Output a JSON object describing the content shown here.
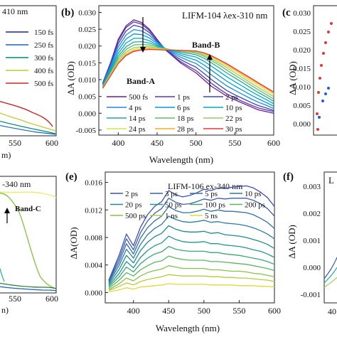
{
  "figure": {
    "panel_a_title_fragment": "410 nm",
    "panel_a_legend": [
      "150 fs",
      "250 fs",
      "300 fs",
      "400 fs",
      "500 fs"
    ],
    "panel_a_xticks": [
      "550",
      "600"
    ],
    "panel_a_xlabel_fragment": "m)",
    "panel_c_label": "(c",
    "panel_c_yticks": [
      "0.030",
      "0.025",
      "0.020",
      "0.015",
      "0.010",
      "0.005",
      "0.000"
    ],
    "panel_c_ylabel": "ΔA (OD)",
    "panel_d_title_fragment": "-340 nm",
    "panel_d_band": "Band-C",
    "panel_d_xticks": [
      "550",
      "600"
    ],
    "panel_d_xlabel_fragment": "n)",
    "panel_f_label": "(f)",
    "panel_f_title_fragment": "L",
    "panel_f_yticks": [
      "0.003",
      "0.002",
      "0.001",
      "0.000",
      "-0.001"
    ],
    "panel_f_ylabel": "ΔA (OD)",
    "panel_f_xtick": "40"
  },
  "chart_data": [
    {
      "panel": "(b)",
      "type": "line",
      "title": "LIFM-104 λex-310 nm",
      "xlabel": "Wavelength (nm)",
      "ylabel": "ΔA (OD)",
      "xlim": [
        375,
        600
      ],
      "ylim": [
        -0.0065,
        0.032
      ],
      "xticks": [
        400,
        450,
        500,
        550,
        600
      ],
      "yticks": [
        -0.005,
        0.0,
        0.005,
        0.01,
        0.015,
        0.02,
        0.025,
        0.03
      ],
      "ytick_labels": [
        "-0.005",
        "0.000",
        "0.005",
        "0.010",
        "0.015",
        "0.020",
        "0.025",
        "0.030"
      ],
      "annotations": [
        "Band-A",
        "Band-B"
      ],
      "legend_placement": "bottom-left",
      "x": [
        380,
        390,
        400,
        410,
        420,
        430,
        440,
        450,
        460,
        470,
        480,
        490,
        500,
        510,
        520,
        530,
        540,
        550,
        560,
        570,
        580,
        590,
        600
      ],
      "series": [
        {
          "name": "500 fs",
          "color": "#6a1b9a",
          "values": [
            0.009,
            0.015,
            0.022,
            0.026,
            0.0278,
            0.027,
            0.025,
            0.022,
            0.019,
            0.017,
            0.015,
            0.0135,
            0.012,
            0.01,
            0.008,
            0.0065,
            0.005,
            0.004,
            0.003,
            0.002,
            0.001,
            0.0005,
            0.0
          ]
        },
        {
          "name": "1 ps",
          "color": "#5e35b1",
          "values": [
            0.009,
            0.0148,
            0.0215,
            0.0255,
            0.0272,
            0.0265,
            0.0246,
            0.0218,
            0.0192,
            0.0172,
            0.0154,
            0.014,
            0.0127,
            0.0108,
            0.0089,
            0.0072,
            0.0057,
            0.0046,
            0.0035,
            0.0025,
            0.0016,
            0.001,
            0.0005
          ]
        },
        {
          "name": "2 ps",
          "color": "#3949ab",
          "values": [
            0.0088,
            0.0145,
            0.0207,
            0.0245,
            0.0262,
            0.0256,
            0.024,
            0.0214,
            0.0192,
            0.0175,
            0.016,
            0.0148,
            0.0137,
            0.0119,
            0.01,
            0.0083,
            0.0067,
            0.0055,
            0.0044,
            0.0033,
            0.0023,
            0.0016,
            0.0008
          ]
        },
        {
          "name": "4 ps",
          "color": "#1e88e5",
          "values": [
            0.0086,
            0.014,
            0.0197,
            0.0233,
            0.0249,
            0.0245,
            0.0232,
            0.0211,
            0.0193,
            0.0179,
            0.0167,
            0.0157,
            0.0148,
            0.0132,
            0.0114,
            0.0097,
            0.0081,
            0.0068,
            0.0056,
            0.0044,
            0.0033,
            0.0024,
            0.0014
          ]
        },
        {
          "name": "6 ps",
          "color": "#039be5",
          "values": [
            0.0084,
            0.0135,
            0.0187,
            0.0221,
            0.0236,
            0.0234,
            0.0224,
            0.0207,
            0.0193,
            0.0182,
            0.0173,
            0.0165,
            0.0158,
            0.0144,
            0.0128,
            0.0111,
            0.0095,
            0.0081,
            0.0068,
            0.0055,
            0.0043,
            0.0032,
            0.0021
          ]
        },
        {
          "name": "10 ps",
          "color": "#00acc1",
          "values": [
            0.0082,
            0.013,
            0.0178,
            0.0209,
            0.0223,
            0.0223,
            0.0216,
            0.0203,
            0.0193,
            0.0185,
            0.0178,
            0.0172,
            0.0167,
            0.0155,
            0.014,
            0.0124,
            0.0108,
            0.0094,
            0.008,
            0.0066,
            0.0053,
            0.0041,
            0.0028
          ]
        },
        {
          "name": "14 ps",
          "color": "#26a69a",
          "values": [
            0.008,
            0.0125,
            0.017,
            0.0198,
            0.0212,
            0.0213,
            0.0209,
            0.02,
            0.0193,
            0.0187,
            0.0182,
            0.0178,
            0.0174,
            0.0164,
            0.015,
            0.0135,
            0.0119,
            0.0105,
            0.0091,
            0.0076,
            0.0062,
            0.0049,
            0.0035
          ]
        },
        {
          "name": "18 ps",
          "color": "#66bb6a",
          "values": [
            0.0078,
            0.012,
            0.0163,
            0.019,
            0.0203,
            0.0205,
            0.0203,
            0.0197,
            0.0192,
            0.0188,
            0.0185,
            0.0182,
            0.0179,
            0.017,
            0.0157,
            0.0143,
            0.0128,
            0.0113,
            0.0099,
            0.0084,
            0.007,
            0.0056,
            0.0042
          ]
        },
        {
          "name": "22 ps",
          "color": "#9ccc65",
          "values": [
            0.0077,
            0.0117,
            0.0157,
            0.0183,
            0.0195,
            0.0198,
            0.0198,
            0.0194,
            0.0191,
            0.0188,
            0.0186,
            0.0184,
            0.0182,
            0.0174,
            0.0162,
            0.0149,
            0.0135,
            0.012,
            0.0106,
            0.0091,
            0.0077,
            0.0063,
            0.0049
          ]
        },
        {
          "name": "24 ps",
          "color": "#d4e157",
          "values": [
            0.0076,
            0.0115,
            0.0153,
            0.0178,
            0.019,
            0.0194,
            0.0195,
            0.0192,
            0.019,
            0.0188,
            0.0187,
            0.0185,
            0.0184,
            0.0177,
            0.0166,
            0.0153,
            0.014,
            0.0126,
            0.0112,
            0.0097,
            0.0083,
            0.0069,
            0.0055
          ]
        },
        {
          "name": "28 ps",
          "color": "#ffa726",
          "values": [
            0.0075,
            0.0113,
            0.015,
            0.0174,
            0.0186,
            0.019,
            0.0192,
            0.019,
            0.0189,
            0.0188,
            0.0187,
            0.0186,
            0.0185,
            0.0179,
            0.0169,
            0.0157,
            0.0144,
            0.013,
            0.0116,
            0.0102,
            0.0088,
            0.0074,
            0.006
          ]
        },
        {
          "name": "30 ps",
          "color": "#e53935",
          "values": [
            0.0074,
            0.0111,
            0.0148,
            0.0172,
            0.0184,
            0.0188,
            0.019,
            0.0189,
            0.0188,
            0.0188,
            0.0187,
            0.0186,
            0.0185,
            0.018,
            0.0171,
            0.0159,
            0.0147,
            0.0133,
            0.0119,
            0.0105,
            0.0091,
            0.0077,
            0.0063
          ]
        }
      ]
    },
    {
      "panel": "(e)",
      "type": "line",
      "title": "LIFM-106 ex-340 nm",
      "xlabel": "Wavelength (nm)",
      "ylabel": "ΔA(OD)",
      "xlim": [
        360,
        600
      ],
      "ylim": [
        -0.0015,
        0.0175
      ],
      "xticks": [
        400,
        450,
        500,
        550,
        600
      ],
      "yticks": [
        0.0,
        0.004,
        0.008,
        0.012,
        0.016
      ],
      "ytick_labels": [
        "0.000",
        "0.004",
        "0.008",
        "0.012",
        "0.016"
      ],
      "legend_placement": "top-left",
      "x": [
        365,
        380,
        390,
        400,
        410,
        420,
        430,
        440,
        450,
        460,
        470,
        480,
        490,
        500,
        510,
        520,
        530,
        540,
        550,
        560,
        570,
        580,
        590,
        600
      ],
      "series": [
        {
          "name": "2 ps",
          "color": "#3f51b5",
          "values": [
            0.0018,
            0.0055,
            0.0085,
            0.0068,
            0.0095,
            0.0113,
            0.0125,
            0.0132,
            0.0148,
            0.0142,
            0.0139,
            0.0141,
            0.0145,
            0.015,
            0.0148,
            0.0152,
            0.0151,
            0.0153,
            0.0154,
            0.0155,
            0.0152,
            0.0146,
            0.0138,
            0.0125
          ]
        },
        {
          "name": "3 ps",
          "color": "#3c5fb3",
          "values": [
            0.0017,
            0.005,
            0.0078,
            0.0062,
            0.0087,
            0.0104,
            0.0115,
            0.0122,
            0.0137,
            0.0131,
            0.0128,
            0.0129,
            0.0132,
            0.0136,
            0.0134,
            0.0137,
            0.0136,
            0.0137,
            0.0137,
            0.0137,
            0.0134,
            0.0129,
            0.0122,
            0.0111
          ]
        },
        {
          "name": "5 ps",
          "color": "#356fa8",
          "values": [
            0.0016,
            0.0045,
            0.0071,
            0.0056,
            0.0079,
            0.0094,
            0.0104,
            0.0111,
            0.0125,
            0.0119,
            0.0116,
            0.0116,
            0.0118,
            0.0121,
            0.0118,
            0.012,
            0.0118,
            0.0118,
            0.0117,
            0.0116,
            0.0113,
            0.0108,
            0.0102,
            0.0093
          ]
        },
        {
          "name": "10 ps",
          "color": "#2e7d9d",
          "values": [
            0.0014,
            0.004,
            0.0063,
            0.005,
            0.007,
            0.0084,
            0.0093,
            0.0099,
            0.0111,
            0.0106,
            0.0103,
            0.0102,
            0.0103,
            0.0105,
            0.0102,
            0.0103,
            0.0101,
            0.01,
            0.0099,
            0.0097,
            0.0094,
            0.009,
            0.0085,
            0.0078
          ]
        },
        {
          "name": "20 ps",
          "color": "#218b90",
          "values": [
            0.0012,
            0.0034,
            0.0054,
            0.0043,
            0.0061,
            0.0073,
            0.0081,
            0.0086,
            0.0097,
            0.0092,
            0.0089,
            0.0088,
            0.0088,
            0.0089,
            0.0086,
            0.0087,
            0.0084,
            0.0083,
            0.0082,
            0.008,
            0.0077,
            0.0074,
            0.007,
            0.0064
          ]
        },
        {
          "name": "50 ps",
          "color": "#21998a",
          "values": [
            0.001,
            0.0028,
            0.0045,
            0.0036,
            0.0051,
            0.0061,
            0.0068,
            0.0072,
            0.0082,
            0.0077,
            0.0074,
            0.0073,
            0.0073,
            0.0074,
            0.0071,
            0.0071,
            0.0069,
            0.0068,
            0.0067,
            0.0065,
            0.0062,
            0.006,
            0.0056,
            0.0051
          ]
        },
        {
          "name": "100 ps",
          "color": "#3aa877",
          "values": [
            0.0008,
            0.0023,
            0.0037,
            0.003,
            0.0042,
            0.005,
            0.0056,
            0.0059,
            0.0067,
            0.0063,
            0.0061,
            0.006,
            0.006,
            0.006,
            0.0058,
            0.0058,
            0.0056,
            0.0055,
            0.0054,
            0.0052,
            0.005,
            0.0048,
            0.0045,
            0.0041
          ]
        },
        {
          "name": "200 ps",
          "color": "#5cb65f",
          "values": [
            0.0006,
            0.0018,
            0.0029,
            0.0024,
            0.0033,
            0.0039,
            0.0044,
            0.0046,
            0.0053,
            0.005,
            0.0048,
            0.0047,
            0.0047,
            0.0047,
            0.0045,
            0.0045,
            0.0044,
            0.0043,
            0.0042,
            0.0041,
            0.0039,
            0.0037,
            0.0035,
            0.0032
          ]
        },
        {
          "name": "500 ps",
          "color": "#86c24c",
          "values": [
            0.0004,
            0.0013,
            0.0021,
            0.0017,
            0.0024,
            0.0029,
            0.0032,
            0.0034,
            0.0039,
            0.0037,
            0.0035,
            0.0035,
            0.0035,
            0.0035,
            0.0033,
            0.0033,
            0.0032,
            0.0031,
            0.0031,
            0.003,
            0.0028,
            0.0027,
            0.0025,
            0.0023
          ]
        },
        {
          "name": "1 ns",
          "color": "#b3cc3f",
          "values": [
            0.0003,
            0.0009,
            0.0014,
            0.0011,
            0.0016,
            0.0019,
            0.0021,
            0.0023,
            0.0026,
            0.0025,
            0.0024,
            0.0024,
            0.0024,
            0.0024,
            0.0023,
            0.0023,
            0.0022,
            0.0022,
            0.0021,
            0.0021,
            0.002,
            0.0019,
            0.0018,
            0.0016
          ]
        },
        {
          "name": "5 ns",
          "color": "#e2d83a",
          "values": [
            0.0001,
            0.0004,
            0.0007,
            0.0005,
            0.0008,
            0.0009,
            0.001,
            0.0011,
            0.0013,
            0.0012,
            0.0012,
            0.0012,
            0.0012,
            0.0012,
            0.0011,
            0.0011,
            0.0011,
            0.0011,
            0.001,
            0.001,
            0.001,
            0.0009,
            0.0009,
            0.0008
          ]
        }
      ]
    }
  ]
}
